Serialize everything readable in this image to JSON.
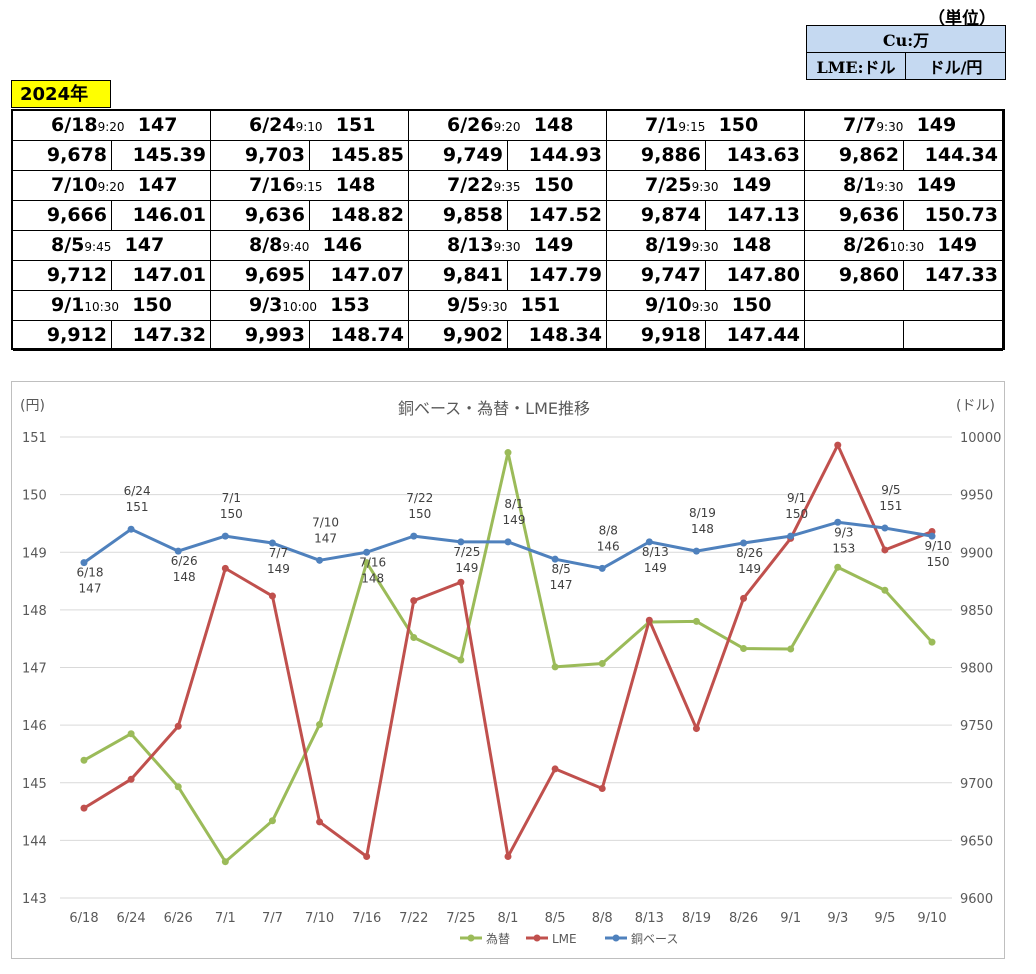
{
  "units": {
    "title": "（単位）",
    "cu_label": "Cu:万",
    "lme_label": "LME:ドル",
    "fx_label": "ドル/円"
  },
  "year_label": "2024年",
  "price_table": [
    {
      "date": "6/18",
      "time": "9:20",
      "cu": "147",
      "lme": "9,678",
      "fx": "145.39"
    },
    {
      "date": "6/24",
      "time": "9:10",
      "cu": "151",
      "lme": "9,703",
      "fx": "145.85"
    },
    {
      "date": "6/26",
      "time": "9:20",
      "cu": "148",
      "lme": "9,749",
      "fx": "144.93"
    },
    {
      "date": "7/1",
      "time": "9:15",
      "cu": "150",
      "lme": "9,886",
      "fx": "143.63"
    },
    {
      "date": "7/7",
      "time": "9:30",
      "cu": "149",
      "lme": "9,862",
      "fx": "144.34"
    },
    {
      "date": "7/10",
      "time": "9:20",
      "cu": "147",
      "lme": "9,666",
      "fx": "146.01"
    },
    {
      "date": "7/16",
      "time": "9:15",
      "cu": "148",
      "lme": "9,636",
      "fx": "148.82"
    },
    {
      "date": "7/22",
      "time": "9:35",
      "cu": "150",
      "lme": "9,858",
      "fx": "147.52"
    },
    {
      "date": "7/25",
      "time": "9:30",
      "cu": "149",
      "lme": "9,874",
      "fx": "147.13"
    },
    {
      "date": "8/1",
      "time": "9:30",
      "cu": "149",
      "lme": "9,636",
      "fx": "150.73"
    },
    {
      "date": "8/5",
      "time": "9:45",
      "cu": "147",
      "lme": "9,712",
      "fx": "147.01"
    },
    {
      "date": "8/8",
      "time": "9:40",
      "cu": "146",
      "lme": "9,695",
      "fx": "147.07"
    },
    {
      "date": "8/13",
      "time": "9:30",
      "cu": "149",
      "lme": "9,841",
      "fx": "147.79"
    },
    {
      "date": "8/19",
      "time": "9:30",
      "cu": "148",
      "lme": "9,747",
      "fx": "147.80"
    },
    {
      "date": "8/26",
      "time": "10:30",
      "cu": "149",
      "lme": "9,860",
      "fx": "147.33"
    },
    {
      "date": "9/1",
      "time": "10:30",
      "cu": "150",
      "lme": "9,912",
      "fx": "147.32"
    },
    {
      "date": "9/3",
      "time": "10:00",
      "cu": "153",
      "lme": "9,993",
      "fx": "148.74"
    },
    {
      "date": "9/5",
      "time": "9:30",
      "cu": "151",
      "lme": "9,902",
      "fx": "148.34"
    },
    {
      "date": "9/10",
      "time": "9:30",
      "cu": "150",
      "lme": "9,918",
      "fx": "147.44"
    }
  ],
  "chart_data": {
    "type": "line",
    "title": "銅ベース・為替・LME推移",
    "left_axis_label": "(円)",
    "right_axis_label": "(ドル)",
    "categories": [
      "6/18",
      "6/24",
      "6/26",
      "7/1",
      "7/7",
      "7/10",
      "7/16",
      "7/22",
      "7/25",
      "8/1",
      "8/5",
      "8/8",
      "8/13",
      "8/19",
      "8/26",
      "9/1",
      "9/3",
      "9/5",
      "9/10"
    ],
    "left_ylim": [
      143,
      151
    ],
    "left_ticks": [
      "143",
      "144",
      "145",
      "146",
      "147",
      "148",
      "149",
      "150",
      "151"
    ],
    "right_ylim": [
      9600,
      10000
    ],
    "right_ticks": [
      "9600",
      "9650",
      "9700",
      "9750",
      "9800",
      "9850",
      "9900",
      "9950",
      "10000"
    ],
    "grid": true,
    "legend_position": "bottom",
    "series": [
      {
        "name": "為替",
        "axis": "left",
        "color": "#9bbb59",
        "values": [
          145.39,
          145.85,
          144.93,
          143.63,
          144.34,
          146.01,
          148.82,
          147.52,
          147.13,
          150.73,
          147.01,
          147.07,
          147.79,
          147.8,
          147.33,
          147.32,
          148.74,
          148.34,
          147.44
        ]
      },
      {
        "name": "LME",
        "axis": "right",
        "color": "#c0504d",
        "values": [
          9678,
          9703,
          9749,
          9886,
          9862,
          9666,
          9636,
          9858,
          9874,
          9636,
          9712,
          9695,
          9841,
          9747,
          9860,
          9912,
          9993,
          9902,
          9918
        ]
      },
      {
        "name": "銅ベース",
        "axis": "right",
        "color": "#4f81bd",
        "values": [
          9891,
          9920,
          9901,
          9914,
          9908,
          9893,
          9900,
          9914,
          9909,
          9909,
          9894,
          9886,
          9909,
          9901,
          9908,
          9914,
          9926,
          9921,
          9914
        ],
        "point_labels": [
          "6/18\n147",
          "6/24\n151",
          "6/26\n148",
          "7/1\n150",
          "7/7\n149",
          "7/10\n147",
          "7/16\n148",
          "7/22\n150",
          "7/25\n149",
          "8/1\n149",
          "8/5\n147",
          "8/8\n146",
          "8/13\n149",
          "8/19\n148",
          "8/26\n149",
          "9/1\n150",
          "9/3\n153",
          "9/5\n151",
          "9/10\n150"
        ]
      }
    ]
  }
}
